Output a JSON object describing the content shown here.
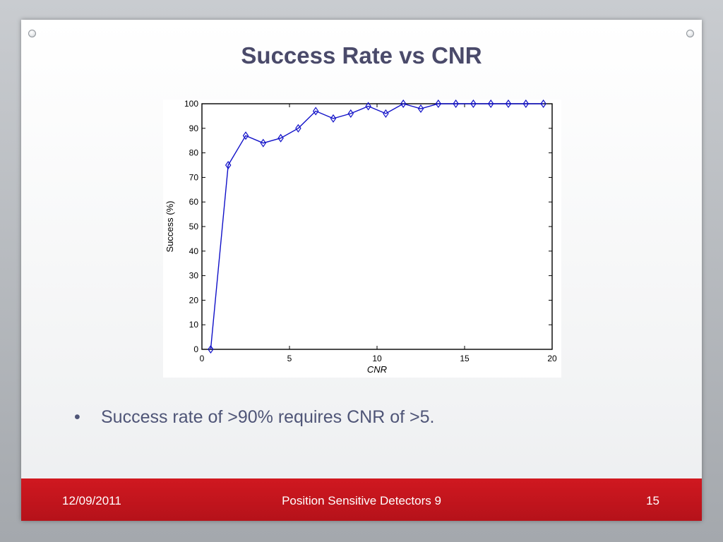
{
  "slide": {
    "title": "Success Rate vs CNR",
    "bullets": [
      {
        "marker": "•",
        "text": "Success rate of >90% requires CNR of >5."
      }
    ],
    "footer": {
      "date": "12/09/2011",
      "title": "Position Sensitive Detectors 9",
      "page": "15"
    }
  },
  "chart_data": {
    "type": "line",
    "title": "",
    "xlabel": "CNR",
    "ylabel": "Success (%)",
    "xlim": [
      0,
      20
    ],
    "ylim": [
      0,
      100
    ],
    "xticks": [
      0,
      5,
      10,
      15,
      20
    ],
    "yticks": [
      0,
      10,
      20,
      30,
      40,
      50,
      60,
      70,
      80,
      90,
      100
    ],
    "grid": false,
    "marker": "diamond",
    "color": "#1010c8",
    "series": [
      {
        "x": [
          0.5,
          1.5,
          2.5,
          3.5,
          4.5,
          5.5,
          6.5,
          7.5,
          8.5,
          9.5,
          10.5,
          11.5,
          12.5,
          13.5,
          14.5,
          15.5,
          16.5,
          17.5,
          18.5,
          19.5
        ],
        "values": [
          0,
          75,
          87,
          84,
          86,
          90,
          97,
          94,
          96,
          99,
          96,
          100,
          98,
          100,
          100,
          100,
          100,
          100,
          100,
          100
        ]
      }
    ]
  }
}
